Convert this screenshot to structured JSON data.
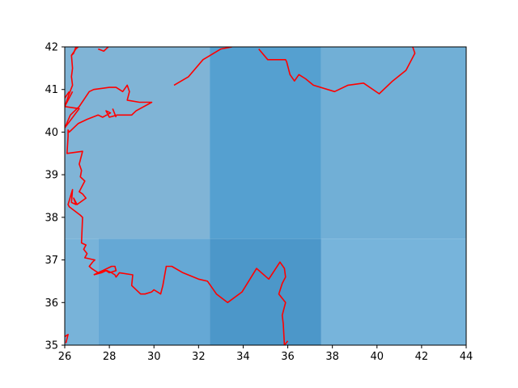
{
  "chart_data": {
    "type": "heatmap",
    "title": "",
    "xlabel": "",
    "ylabel": "",
    "xlim": [
      26,
      44
    ],
    "ylim": [
      35,
      42
    ],
    "xticks": [
      26,
      28,
      30,
      32,
      34,
      36,
      38,
      40,
      42,
      44
    ],
    "yticks": [
      35,
      36,
      37,
      38,
      39,
      40,
      41,
      42
    ],
    "grid": false,
    "cells": [
      {
        "x": [
          26,
          27.5
        ],
        "y": [
          35,
          37.5
        ],
        "color": "#78b3d9"
      },
      {
        "x": [
          27.5,
          32.5
        ],
        "y": [
          35,
          37.5
        ],
        "color": "#65a8d5"
      },
      {
        "x": [
          32.5,
          37.5
        ],
        "y": [
          35,
          37.5
        ],
        "color": "#4c97c9"
      },
      {
        "x": [
          37.5,
          44
        ],
        "y": [
          35,
          37.5
        ],
        "color": "#77b4db"
      },
      {
        "x": [
          26,
          32.5
        ],
        "y": [
          37.5,
          42
        ],
        "color": "#80b4d6"
      },
      {
        "x": [
          32.5,
          37.5
        ],
        "y": [
          37.5,
          42
        ],
        "color": "#55a0d0"
      },
      {
        "x": [
          37.5,
          44
        ],
        "y": [
          37.5,
          42
        ],
        "color": "#71afd6"
      }
    ],
    "coastline": {
      "color": "#ff0000",
      "segments": [
        [
          [
            26.05,
            35.05
          ],
          [
            26.15,
            35.25
          ],
          [
            26.0,
            35.2
          ]
        ],
        [
          [
            26.5,
            42.0
          ],
          [
            26.4,
            41.85
          ],
          [
            26.3,
            41.8
          ],
          [
            26.35,
            41.5
          ],
          [
            26.3,
            41.3
          ],
          [
            26.35,
            41.1
          ],
          [
            26.2,
            40.9
          ],
          [
            26.0,
            40.6
          ],
          [
            26.65,
            40.55
          ],
          [
            26.0,
            40.1
          ],
          [
            26.25,
            40.4
          ],
          [
            26.65,
            40.6
          ],
          [
            27.1,
            40.95
          ],
          [
            27.3,
            41.0
          ],
          [
            28.0,
            41.05
          ],
          [
            28.3,
            41.05
          ],
          [
            28.6,
            40.95
          ],
          [
            28.8,
            41.1
          ],
          [
            28.9,
            40.95
          ],
          [
            28.8,
            40.75
          ],
          [
            29.35,
            40.7
          ],
          [
            29.9,
            40.7
          ],
          [
            29.2,
            40.5
          ],
          [
            29.1,
            40.45
          ],
          [
            29.0,
            40.4
          ],
          [
            28.35,
            40.4
          ],
          [
            28.0,
            40.35
          ],
          [
            27.85,
            40.5
          ],
          [
            28.05,
            40.45
          ],
          [
            27.7,
            40.35
          ],
          [
            27.5,
            40.4
          ],
          [
            27.0,
            40.3
          ],
          [
            26.6,
            40.2
          ],
          [
            26.2,
            40.0
          ],
          [
            26.15,
            40.05
          ],
          [
            26.15,
            39.9
          ],
          [
            26.1,
            39.5
          ],
          [
            26.8,
            39.55
          ],
          [
            26.65,
            39.25
          ],
          [
            26.75,
            39.1
          ],
          [
            26.7,
            38.95
          ],
          [
            26.9,
            38.85
          ],
          [
            26.8,
            38.75
          ],
          [
            26.65,
            38.6
          ],
          [
            26.8,
            38.55
          ],
          [
            26.95,
            38.45
          ],
          [
            26.55,
            38.3
          ],
          [
            26.4,
            38.45
          ],
          [
            26.5,
            38.3
          ],
          [
            26.3,
            38.35
          ],
          [
            26.35,
            38.65
          ],
          [
            26.15,
            38.3
          ],
          [
            26.2,
            38.25
          ],
          [
            26.7,
            38.05
          ],
          [
            26.8,
            38.0
          ],
          [
            26.75,
            37.4
          ],
          [
            26.95,
            37.35
          ],
          [
            26.85,
            37.25
          ],
          [
            27.0,
            37.15
          ],
          [
            26.9,
            37.05
          ],
          [
            27.35,
            37.0
          ],
          [
            27.25,
            36.95
          ],
          [
            27.1,
            36.85
          ],
          [
            27.2,
            36.8
          ],
          [
            27.35,
            36.75
          ],
          [
            27.5,
            36.7
          ],
          [
            27.7,
            36.75
          ],
          [
            27.9,
            36.75
          ],
          [
            28.1,
            36.7
          ],
          [
            28.25,
            36.65
          ],
          [
            28.3,
            36.6
          ],
          [
            28.45,
            36.7
          ],
          [
            29.05,
            36.65
          ],
          [
            29.0,
            36.4
          ],
          [
            29.4,
            36.2
          ],
          [
            29.6,
            36.2
          ],
          [
            29.9,
            36.25
          ],
          [
            30.0,
            36.3
          ],
          [
            30.3,
            36.2
          ],
          [
            30.4,
            36.4
          ],
          [
            30.55,
            36.85
          ],
          [
            30.8,
            36.85
          ],
          [
            31.3,
            36.7
          ],
          [
            32.0,
            36.55
          ],
          [
            32.4,
            36.5
          ],
          [
            32.8,
            36.2
          ],
          [
            33.3,
            36.0
          ],
          [
            33.95,
            36.25
          ],
          [
            34.6,
            36.8
          ],
          [
            35.15,
            36.55
          ],
          [
            35.65,
            36.95
          ],
          [
            35.85,
            36.8
          ],
          [
            35.9,
            36.6
          ],
          [
            35.75,
            36.45
          ],
          [
            35.6,
            36.2
          ],
          [
            35.9,
            36.0
          ],
          [
            35.75,
            35.7
          ],
          [
            35.8,
            35.5
          ],
          [
            35.85,
            35.0
          ]
        ],
        [
          [
            27.3,
            36.65
          ],
          [
            27.65,
            36.7
          ],
          [
            27.85,
            36.75
          ],
          [
            28.0,
            36.7
          ],
          [
            28.3,
            36.75
          ],
          [
            28.25,
            36.85
          ],
          [
            28.1,
            36.85
          ],
          [
            27.3,
            36.65
          ]
        ],
        [
          [
            27.5,
            41.95
          ],
          [
            27.75,
            41.9
          ],
          [
            27.95,
            42.0
          ]
        ],
        [
          [
            30.9,
            41.1
          ],
          [
            31.55,
            41.3
          ],
          [
            32.2,
            41.7
          ],
          [
            33.0,
            41.95
          ],
          [
            33.5,
            42.0
          ]
        ],
        [
          [
            34.7,
            41.95
          ],
          [
            35.1,
            41.7
          ],
          [
            35.9,
            41.7
          ],
          [
            35.95,
            41.65
          ],
          [
            36.1,
            41.35
          ],
          [
            36.3,
            41.2
          ],
          [
            36.5,
            41.35
          ],
          [
            36.8,
            41.25
          ],
          [
            37.15,
            41.1
          ],
          [
            38.1,
            40.95
          ],
          [
            38.7,
            41.1
          ],
          [
            39.4,
            41.15
          ],
          [
            40.1,
            40.9
          ],
          [
            40.7,
            41.2
          ],
          [
            41.3,
            41.45
          ],
          [
            41.7,
            41.85
          ],
          [
            41.6,
            42.0
          ]
        ],
        [
          [
            35.85,
            35.0
          ],
          [
            36.0,
            35.1
          ]
        ],
        [
          [
            26.0,
            40.6
          ],
          [
            26.35,
            40.95
          ]
        ],
        [
          [
            26.2,
            40.95
          ],
          [
            26.0,
            40.8
          ]
        ],
        [
          [
            26.3,
            41.8
          ],
          [
            26.5,
            41.95
          ],
          [
            26.6,
            42.0
          ]
        ],
        [
          [
            28.3,
            40.35
          ],
          [
            28.15,
            40.55
          ]
        ]
      ]
    }
  }
}
